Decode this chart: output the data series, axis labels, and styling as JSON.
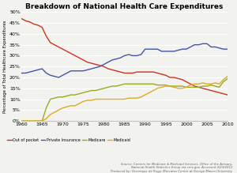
{
  "title": "Breakdown of National Health Care Expenditures",
  "ylabel": "Percentage of Total Healthcare Expenditures",
  "xlim": [
    1960,
    2010
  ],
  "ylim": [
    0,
    50
  ],
  "yticks": [
    0,
    5,
    10,
    15,
    20,
    25,
    30,
    35,
    40,
    45,
    50
  ],
  "xticks": [
    1960,
    1965,
    1970,
    1975,
    1980,
    1985,
    1990,
    1995,
    2000,
    2005,
    2010
  ],
  "bg_color": "#f2f2ee",
  "source_text": "Source: Centers for Medicare & Medicaid Services, Office of the Actuary,\nNational Health Statistics Group via cms.gov. Accessed 3/23/2012\nProduced by: Veronique de Rugy, Mercatus Center at George Mason University",
  "series": {
    "out_of_pocket": {
      "label": "Out of pocket",
      "color": "#cc3322",
      "years": [
        1960,
        1961,
        1962,
        1963,
        1964,
        1965,
        1966,
        1967,
        1968,
        1969,
        1970,
        1971,
        1972,
        1973,
        1974,
        1975,
        1976,
        1977,
        1978,
        1979,
        1980,
        1981,
        1982,
        1983,
        1984,
        1985,
        1986,
        1987,
        1988,
        1989,
        1990,
        1991,
        1992,
        1993,
        1994,
        1995,
        1996,
        1997,
        1998,
        1999,
        2000,
        2001,
        2002,
        2003,
        2004,
        2005,
        2006,
        2007,
        2008,
        2009,
        2010
      ],
      "values": [
        47,
        46,
        45.5,
        44.5,
        44,
        43,
        39,
        36,
        35,
        34,
        33,
        32,
        31,
        30,
        29,
        28,
        27,
        26.5,
        26,
        25.5,
        25,
        24,
        23.5,
        23,
        22.5,
        22,
        22,
        22,
        22.5,
        22.5,
        22.5,
        22.5,
        22.5,
        22,
        21.5,
        21,
        20,
        20,
        19.5,
        19,
        18,
        17,
        16,
        15.5,
        15,
        14.5,
        14,
        13.5,
        13,
        12.5,
        12
      ]
    },
    "private_insurance": {
      "label": "Private Insurance",
      "color": "#4455aa",
      "years": [
        1960,
        1961,
        1962,
        1963,
        1964,
        1965,
        1966,
        1967,
        1968,
        1969,
        1970,
        1971,
        1972,
        1973,
        1974,
        1975,
        1976,
        1977,
        1978,
        1979,
        1980,
        1981,
        1982,
        1983,
        1984,
        1985,
        1986,
        1987,
        1988,
        1989,
        1990,
        1991,
        1992,
        1993,
        1994,
        1995,
        1996,
        1997,
        1998,
        1999,
        2000,
        2001,
        2002,
        2003,
        2004,
        2005,
        2006,
        2007,
        2008,
        2009,
        2010
      ],
      "values": [
        22,
        22,
        22.5,
        23,
        23.5,
        24,
        22,
        21,
        20.5,
        20,
        21,
        22,
        23,
        23,
        23,
        23,
        23.5,
        24,
        24.5,
        25,
        26,
        27,
        28,
        28.5,
        29,
        30,
        30.5,
        30,
        30,
        30.5,
        33,
        33,
        33,
        33,
        32,
        32,
        32,
        32,
        32.5,
        33,
        33,
        34,
        35,
        35,
        35.5,
        35.5,
        34,
        34,
        33.5,
        33,
        33
      ]
    },
    "medicare": {
      "label": "Medicare",
      "color": "#99aa22",
      "years": [
        1960,
        1961,
        1962,
        1963,
        1964,
        1965,
        1966,
        1967,
        1968,
        1969,
        1970,
        1971,
        1972,
        1973,
        1974,
        1975,
        1976,
        1977,
        1978,
        1979,
        1980,
        1981,
        1982,
        1983,
        1984,
        1985,
        1986,
        1987,
        1988,
        1989,
        1990,
        1991,
        1992,
        1993,
        1994,
        1995,
        1996,
        1997,
        1998,
        1999,
        2000,
        2001,
        2002,
        2003,
        2004,
        2005,
        2006,
        2007,
        2008,
        2009,
        2010
      ],
      "values": [
        0,
        0,
        0,
        0,
        0,
        0,
        6,
        10,
        10.5,
        11,
        11,
        11.5,
        12,
        12,
        12.5,
        13,
        13.5,
        14,
        14,
        14.5,
        15,
        15.5,
        16,
        16,
        16.5,
        17,
        17,
        17,
        17,
        17,
        17,
        17,
        17,
        16.5,
        16.5,
        16.5,
        16,
        16,
        16,
        16,
        15.5,
        15.5,
        15.5,
        15.5,
        16,
        16,
        16.5,
        16,
        15.5,
        18,
        19.5
      ]
    },
    "medicaid": {
      "label": "Medicaid",
      "color": "#ddaa22",
      "years": [
        1960,
        1961,
        1962,
        1963,
        1964,
        1965,
        1966,
        1967,
        1968,
        1969,
        1970,
        1971,
        1972,
        1973,
        1974,
        1975,
        1976,
        1977,
        1978,
        1979,
        1980,
        1981,
        1982,
        1983,
        1984,
        1985,
        1986,
        1987,
        1988,
        1989,
        1990,
        1991,
        1992,
        1993,
        1994,
        1995,
        1996,
        1997,
        1998,
        1999,
        2000,
        2001,
        2002,
        2003,
        2004,
        2005,
        2006,
        2007,
        2008,
        2009,
        2010
      ],
      "values": [
        0,
        0,
        0,
        0,
        0,
        0,
        1,
        3,
        4,
        5,
        6,
        6.5,
        7,
        7,
        8,
        9,
        9.5,
        9.5,
        10,
        10,
        10,
        10,
        10,
        10,
        10,
        10,
        10.5,
        10.5,
        10.5,
        11,
        12,
        13,
        14,
        15,
        15.5,
        16,
        16,
        15.5,
        15,
        15,
        15.5,
        16.5,
        17,
        17,
        17.5,
        17,
        17,
        17.5,
        17,
        19,
        20.5
      ]
    }
  }
}
